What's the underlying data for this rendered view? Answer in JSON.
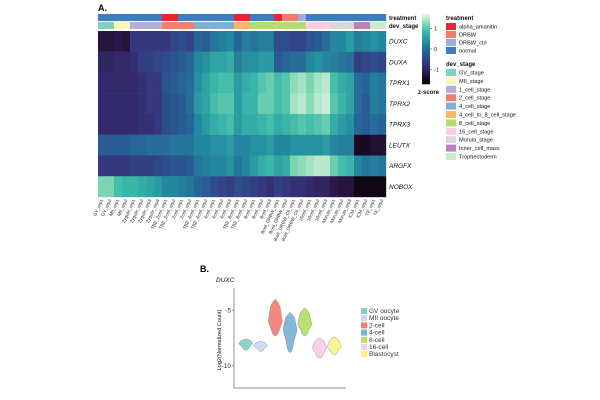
{
  "panel_a_label": "A.",
  "panel_b_label": "B.",
  "chart_data": [
    {
      "type": "heatmap",
      "title": "",
      "annotation_labels": {
        "treatment": "treatment",
        "dev_stage": "dev_stage"
      },
      "rows": [
        "DUXC",
        "DUXA",
        "TPRX1",
        "TPRX2",
        "TPRX3",
        "LEUTX",
        "ARGFX",
        "NOBOX"
      ],
      "columns": [
        "GV_rep1",
        "GV_rep2",
        "MII_rep1",
        "MII_rep2",
        "Zygote_rep1",
        "Zygote_rep2",
        "Zygote_rep3",
        "Zygote_rep4",
        "TBE_2cell_rep1",
        "TBE_2cell_rep2",
        "2cell_rep1",
        "2cell_rep2",
        "TBE_4cell_rep1",
        "TBE_4cell_rep2",
        "4cell_rep1",
        "4cell_rep2",
        "4cell_rep3",
        "TBE_8cell_rep1",
        "TBE_8cell_rep2",
        "8cell_rep1",
        "8cell_rep2",
        "8cell_rep3",
        "8cell_DRBW_rep1",
        "8cell_DRBW_rep2",
        "8cell_DRBW_Ctl_rep1",
        "8cell_DRBW_Ctl_rep2",
        "16cell_rep1",
        "16cell_rep2",
        "16cell_rep3",
        "Morula_rep1",
        "Morula_rep2",
        "Morula_rep3",
        "ICM_rep1",
        "ICM_rep2",
        "TE_rep1",
        "TE_rep2"
      ],
      "treatment": [
        "normal",
        "normal",
        "normal",
        "normal",
        "normal",
        "normal",
        "normal",
        "normal",
        "alpha_amanitin",
        "alpha_amanitin",
        "normal",
        "normal",
        "normal",
        "normal",
        "normal",
        "normal",
        "normal",
        "alpha_amanitin",
        "alpha_amanitin",
        "normal",
        "normal",
        "normal",
        "alpha_amanitin",
        "DRBW",
        "DRBW",
        "DRBW_ctrl",
        "normal",
        "normal",
        "normal",
        "normal",
        "normal",
        "normal",
        "normal",
        "normal",
        "normal",
        "normal"
      ],
      "dev_stage": [
        "GV_stage",
        "GV_stage",
        "MII_stage",
        "MII_stage",
        "1_cell_stage",
        "1_cell_stage",
        "1_cell_stage",
        "1_cell_stage",
        "2_cell_stage",
        "2_cell_stage",
        "2_cell_stage",
        "2_cell_stage",
        "4_cell_stage",
        "4_cell_stage",
        "4_cell_stage",
        "4_cell_stage",
        "4_cell_stage",
        "4_cell_to_8_cell_stage",
        "4_cell_to_8_cell_stage",
        "8_cell_stage",
        "8_cell_stage",
        "8_cell_stage",
        "8_cell_stage",
        "8_cell_stage",
        "8_cell_stage",
        "8_cell_stage",
        "16_cell_stage",
        "16_cell_stage",
        "16_cell_stage",
        "Morula_stage",
        "Morula_stage",
        "Morula_stage",
        "Inner_cell_mass",
        "Inner_cell_mass",
        "Trophectoderm",
        "Trophectoderm"
      ],
      "values": [
        [
          -1.3,
          -1.3,
          -1.2,
          -1.3,
          -0.7,
          -0.7,
          -0.7,
          -0.7,
          -0.7,
          -0.5,
          -0.4,
          -0.5,
          -0.1,
          -0.2,
          0.1,
          0.2,
          0.3,
          -0.1,
          0.2,
          0.1,
          0.2,
          0.2,
          -0.4,
          -0.4,
          -0.5,
          -0.5,
          -0.3,
          -0.2,
          0.0,
          0.3,
          0.3,
          0.5,
          0.2,
          0.3,
          0.4,
          0.3
        ],
        [
          -1.0,
          -1.0,
          -0.9,
          -0.9,
          -0.8,
          -0.6,
          -0.6,
          -0.5,
          -0.4,
          -0.3,
          -0.2,
          -0.1,
          0.3,
          0.4,
          0.6,
          0.6,
          0.7,
          0.2,
          0.4,
          0.4,
          0.5,
          0.5,
          -0.2,
          -0.1,
          0.0,
          0.0,
          0.3,
          0.4,
          0.3,
          0.2,
          0.1,
          0.0,
          -0.6,
          -0.5,
          -0.4,
          -0.5
        ],
        [
          -0.9,
          -0.9,
          -0.9,
          -0.9,
          -0.9,
          -0.8,
          -0.7,
          -0.7,
          -0.3,
          -0.2,
          -0.1,
          0.0,
          0.4,
          0.6,
          0.8,
          0.9,
          0.9,
          0.5,
          0.7,
          0.8,
          1.0,
          1.1,
          0.9,
          1.0,
          1.3,
          1.4,
          1.2,
          1.4,
          1.5,
          0.9,
          0.7,
          0.6,
          0.0,
          -0.1,
          0.2,
          0.1
        ],
        [
          -0.9,
          -0.9,
          -0.9,
          -0.9,
          -0.9,
          -0.8,
          -0.7,
          -0.7,
          -0.4,
          -0.3,
          -0.2,
          0.0,
          0.5,
          0.6,
          0.9,
          1.0,
          1.0,
          0.5,
          0.8,
          0.8,
          1.1,
          1.1,
          0.9,
          1.0,
          1.4,
          1.5,
          1.3,
          1.5,
          1.6,
          1.0,
          0.8,
          0.6,
          0.0,
          -0.2,
          0.2,
          0.1
        ],
        [
          -0.9,
          -0.9,
          -0.9,
          -0.9,
          -0.9,
          -0.8,
          -0.8,
          -0.7,
          -0.4,
          -0.3,
          -0.2,
          -0.1,
          0.3,
          0.5,
          0.7,
          0.8,
          0.9,
          0.5,
          0.7,
          0.7,
          0.8,
          0.9,
          0.7,
          0.8,
          0.9,
          1.0,
          0.9,
          1.0,
          1.1,
          0.7,
          0.5,
          0.4,
          -0.1,
          -0.2,
          0.0,
          -0.1
        ],
        [
          -0.2,
          -0.2,
          -0.2,
          -0.2,
          -0.1,
          -0.1,
          0.0,
          0.0,
          0.0,
          0.1,
          0.1,
          0.1,
          0.3,
          0.3,
          0.4,
          0.4,
          0.5,
          0.3,
          0.3,
          0.4,
          0.4,
          0.5,
          0.3,
          0.3,
          0.4,
          0.4,
          0.4,
          0.4,
          0.5,
          0.3,
          0.2,
          0.2,
          -1.5,
          -1.5,
          -1.4,
          -1.4
        ],
        [
          -0.7,
          -0.7,
          -0.7,
          -0.7,
          -0.6,
          -0.6,
          -0.6,
          -0.5,
          -0.4,
          -0.3,
          -0.3,
          -0.2,
          0.1,
          0.2,
          0.3,
          0.3,
          0.4,
          0.1,
          0.3,
          0.5,
          0.7,
          0.8,
          0.6,
          0.7,
          1.2,
          1.3,
          1.4,
          1.5,
          1.5,
          1.1,
          0.9,
          0.8,
          0.3,
          0.1,
          0.2,
          0.1
        ],
        [
          1.2,
          1.2,
          0.9,
          0.8,
          0.8,
          0.7,
          0.6,
          0.5,
          0.3,
          0.3,
          0.2,
          0.1,
          -0.1,
          -0.2,
          -0.4,
          -0.5,
          -0.6,
          -0.4,
          -0.5,
          -0.6,
          -0.7,
          -0.8,
          -0.6,
          -0.7,
          -0.8,
          -0.8,
          -0.9,
          -1.0,
          -1.0,
          -1.2,
          -1.3,
          -1.3,
          -1.6,
          -1.6,
          -1.6,
          -1.6
        ]
      ],
      "colorbar": {
        "min": -1.7,
        "max": 1.7,
        "ticks": [
          1,
          0,
          -1
        ],
        "label": "z-score"
      },
      "legend_treatment": {
        "title": "treatment",
        "entries": [
          {
            "name": "alpha_amanitin",
            "color": "#e8272c"
          },
          {
            "name": "DRBW",
            "color": "#f07a6e"
          },
          {
            "name": "DRBW_ctrl",
            "color": "#9aaed8"
          },
          {
            "name": "normal",
            "color": "#3c7ec0"
          }
        ]
      },
      "legend_dev_stage": {
        "title": "dev_stage",
        "entries": [
          {
            "name": "GV_stage",
            "color": "#7fd1c0"
          },
          {
            "name": "MII_stage",
            "color": "#fcf6b4"
          },
          {
            "name": "1_cell_stage",
            "color": "#b3aedb"
          },
          {
            "name": "2_cell_stage",
            "color": "#f47d72"
          },
          {
            "name": "4_cell_stage",
            "color": "#7eb0d4"
          },
          {
            "name": "4_cell_to_8_cell_stage",
            "color": "#fcb561"
          },
          {
            "name": "8_cell_stage",
            "color": "#b3de68"
          },
          {
            "name": "16_cell_stage",
            "color": "#fccde5"
          },
          {
            "name": "Morula_stage",
            "color": "#d9d9d9"
          },
          {
            "name": "Inner_cell_mass",
            "color": "#bc80bd"
          },
          {
            "name": "Trophectoderm",
            "color": "#ccebc5"
          }
        ]
      }
    },
    {
      "type": "violin",
      "title": "DUXC",
      "ylabel": "Log2(Normalized Count)",
      "ylim": [
        -12,
        -3
      ],
      "yticks": [
        -5,
        -10
      ],
      "categories": [
        "GV oocyte",
        "MII oocyte",
        "2-cell",
        "4-cell",
        "8-cell",
        "16-cell",
        "Blastocyst"
      ],
      "colors": [
        "#7fd1c0",
        "#c8d8f4",
        "#f47d72",
        "#7eb0d4",
        "#b3de68",
        "#fccde5",
        "#fcf28a"
      ],
      "series": [
        {
          "name": "GV oocyte",
          "min": -8.6,
          "q1": -8.3,
          "median": -8.0,
          "q3": -7.8,
          "max": -7.6
        },
        {
          "name": "MII oocyte",
          "min": -8.7,
          "q1": -8.4,
          "median": -8.2,
          "q3": -8.0,
          "max": -7.8
        },
        {
          "name": "2-cell",
          "min": -7.3,
          "q1": -6.8,
          "median": -6.0,
          "q3": -5.0,
          "max": -4.0
        },
        {
          "name": "4-cell",
          "min": -8.8,
          "q1": -7.8,
          "median": -6.8,
          "q3": -6.0,
          "max": -5.2
        },
        {
          "name": "8-cell",
          "min": -7.3,
          "q1": -6.8,
          "median": -6.3,
          "q3": -5.6,
          "max": -4.8
        },
        {
          "name": "16-cell",
          "min": -9.3,
          "q1": -8.9,
          "median": -8.4,
          "q3": -8.0,
          "max": -7.5
        },
        {
          "name": "Blastocyst",
          "min": -9.0,
          "q1": -8.6,
          "median": -8.3,
          "q3": -7.9,
          "max": -7.4
        }
      ]
    }
  ]
}
